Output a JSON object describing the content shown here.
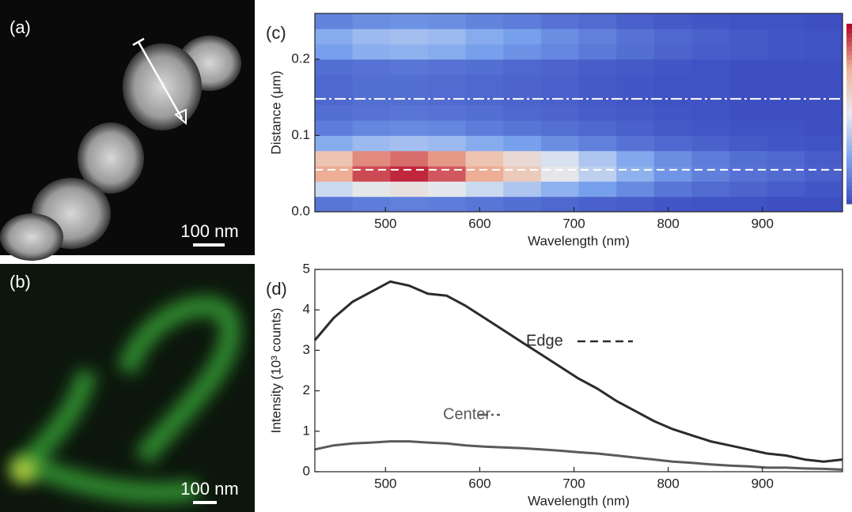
{
  "images": [
    {
      "label": "(a)",
      "scale_bar": "100 nm"
    },
    {
      "label": "(b)",
      "scale_bar": "100 nm"
    }
  ],
  "chart_data": [
    {
      "type": "heatmap",
      "panel_label": "(c)",
      "xlabel": "Wavelength (nm)",
      "ylabel": "Distance (μm)",
      "x": [
        425,
        465,
        505,
        545,
        585,
        625,
        665,
        705,
        745,
        785,
        825,
        865,
        905,
        945,
        985
      ],
      "y": [
        0,
        0.02,
        0.04,
        0.06,
        0.08,
        0.1,
        0.12,
        0.14,
        0.16,
        0.18,
        0.2,
        0.22,
        0.24,
        0.26
      ],
      "values": [
        [
          0.12,
          0.14,
          0.15,
          0.14,
          0.12,
          0.1,
          0.08,
          0.06,
          0.05,
          0.03,
          0.02,
          0.02,
          0.01,
          0.01
        ],
        [
          0.44,
          0.52,
          0.55,
          0.51,
          0.44,
          0.37,
          0.3,
          0.24,
          0.18,
          0.12,
          0.09,
          0.07,
          0.05,
          0.03
        ],
        [
          0.76,
          0.9,
          0.95,
          0.88,
          0.76,
          0.65,
          0.52,
          0.41,
          0.3,
          0.21,
          0.15,
          0.11,
          0.09,
          0.06
        ],
        [
          0.68,
          0.81,
          0.85,
          0.79,
          0.68,
          0.58,
          0.47,
          0.37,
          0.27,
          0.19,
          0.14,
          0.1,
          0.08,
          0.05
        ],
        [
          0.28,
          0.33,
          0.35,
          0.33,
          0.28,
          0.24,
          0.19,
          0.15,
          0.11,
          0.08,
          0.06,
          0.04,
          0.03,
          0.02
        ],
        [
          0.14,
          0.17,
          0.18,
          0.17,
          0.14,
          0.12,
          0.1,
          0.08,
          0.06,
          0.04,
          0.03,
          0.02,
          0.02,
          0.01
        ],
        [
          0.1,
          0.11,
          0.12,
          0.11,
          0.1,
          0.08,
          0.07,
          0.05,
          0.04,
          0.03,
          0.02,
          0.01,
          0.01,
          0.01
        ],
        [
          0.08,
          0.1,
          0.1,
          0.09,
          0.08,
          0.07,
          0.06,
          0.04,
          0.03,
          0.02,
          0.02,
          0.01,
          0.01,
          0.01
        ],
        [
          0.08,
          0.1,
          0.1,
          0.09,
          0.08,
          0.07,
          0.06,
          0.04,
          0.03,
          0.02,
          0.02,
          0.01,
          0.01,
          0.01
        ],
        [
          0.1,
          0.11,
          0.12,
          0.11,
          0.1,
          0.08,
          0.07,
          0.05,
          0.04,
          0.03,
          0.02,
          0.01,
          0.01,
          0.01
        ],
        [
          0.24,
          0.29,
          0.3,
          0.28,
          0.24,
          0.2,
          0.17,
          0.13,
          0.1,
          0.07,
          0.05,
          0.04,
          0.03,
          0.02
        ],
        [
          0.28,
          0.33,
          0.35,
          0.33,
          0.28,
          0.24,
          0.19,
          0.15,
          0.11,
          0.08,
          0.06,
          0.04,
          0.03,
          0.02
        ],
        [
          0.16,
          0.19,
          0.2,
          0.19,
          0.16,
          0.14,
          0.11,
          0.09,
          0.06,
          0.04,
          0.03,
          0.02,
          0.02,
          0.01
        ]
      ],
      "zlim": [
        0,
        1
      ],
      "colormap": [
        "#3b4cc0",
        "#7aa3ee",
        "#e4eaf0",
        "#f0b49a",
        "#b40426"
      ],
      "xlim": [
        425,
        985
      ],
      "ylim": [
        0,
        0.26
      ],
      "xticks": [
        500,
        600,
        700,
        800,
        900
      ],
      "yticks": [
        {
          "value": 0,
          "label": "0.0"
        },
        0.1,
        0.2
      ],
      "lines": [
        {
          "value": 0.055,
          "dash": "10,6",
          "color": "#ffffff"
        },
        {
          "value": 0.148,
          "dash": "14,4,3,4",
          "color": "#ffffff"
        }
      ]
    },
    {
      "type": "line",
      "panel_label": "(d)",
      "xlabel": "Wavelength (nm)",
      "ylabel": "Intensity (10³ counts)",
      "x": [
        425,
        445,
        465,
        485,
        505,
        525,
        545,
        565,
        585,
        605,
        625,
        645,
        665,
        685,
        705,
        725,
        745,
        765,
        785,
        805,
        825,
        845,
        865,
        885,
        905,
        925,
        945,
        965,
        985
      ],
      "series": [
        {
          "name": "Edge",
          "color": "#2b2b2b",
          "dash": "10,6",
          "values": [
            3.25,
            3.8,
            4.2,
            4.45,
            4.7,
            4.6,
            4.4,
            4.35,
            4.1,
            3.8,
            3.5,
            3.2,
            2.9,
            2.6,
            2.3,
            2.05,
            1.75,
            1.5,
            1.25,
            1.05,
            0.9,
            0.75,
            0.65,
            0.55,
            0.45,
            0.4,
            0.3,
            0.25,
            0.3
          ]
        },
        {
          "name": "Center",
          "color": "#5a5a5a",
          "dash": "12,4,3,4",
          "values": [
            0.55,
            0.65,
            0.7,
            0.72,
            0.75,
            0.75,
            0.72,
            0.7,
            0.65,
            0.62,
            0.6,
            0.58,
            0.55,
            0.52,
            0.48,
            0.45,
            0.4,
            0.35,
            0.3,
            0.25,
            0.22,
            0.18,
            0.15,
            0.13,
            0.1,
            0.1,
            0.08,
            0.07,
            0.05
          ]
        }
      ],
      "xlim": [
        425,
        985
      ],
      "ylim": [
        0,
        5
      ],
      "xticks": [
        500,
        600,
        700,
        800,
        900
      ],
      "yticks": [
        0,
        1,
        2,
        3,
        4,
        5
      ]
    }
  ]
}
